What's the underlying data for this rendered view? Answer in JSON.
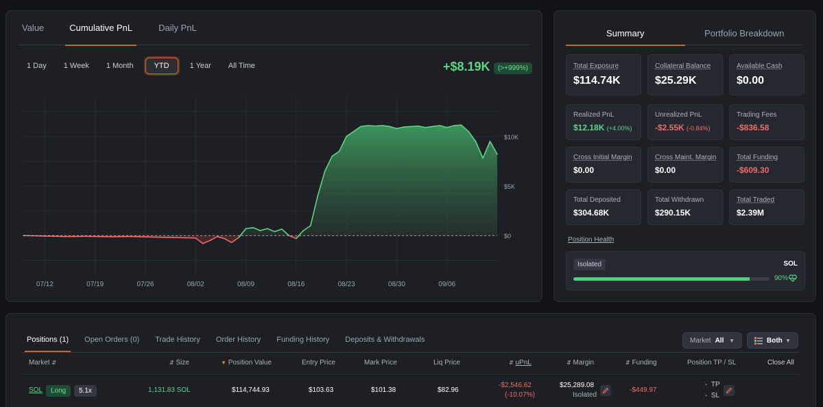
{
  "chart_panel": {
    "tabs": [
      "Value",
      "Cumulative PnL",
      "Daily PnL"
    ],
    "active_tab": "Cumulative PnL",
    "ranges": [
      "1 Day",
      "1 Week",
      "1 Month",
      "YTD",
      "1 Year",
      "All Time"
    ],
    "active_range": "YTD",
    "pnl_value": "+$8.19K",
    "pnl_badge": "(>+999%)"
  },
  "chart_data": {
    "type": "area",
    "x_ticks": [
      "07/12",
      "07/19",
      "07/26",
      "08/02",
      "08/09",
      "08/16",
      "08/23",
      "08/30",
      "09/06"
    ],
    "y_ticks": [
      "$10K",
      "$5K",
      "$0"
    ],
    "ylim": [
      -4000,
      14000
    ],
    "x_range": [
      "07/09",
      "09/13"
    ],
    "grid": true,
    "colors": {
      "positive": "#5ed487",
      "negative": "#f06b6b"
    },
    "x": [
      "07/09",
      "07/12",
      "07/15",
      "07/18",
      "07/21",
      "07/24",
      "07/27",
      "07/30",
      "08/02",
      "08/03",
      "08/04",
      "08/05",
      "08/06",
      "08/07",
      "08/08",
      "08/09",
      "08/10",
      "08/11",
      "08/12",
      "08/13",
      "08/14",
      "08/15",
      "08/16",
      "08/17",
      "08/18",
      "08/19",
      "08/20",
      "08/21",
      "08/22",
      "08/23",
      "08/24",
      "08/25",
      "08/26",
      "08/27",
      "08/28",
      "08/29",
      "08/30",
      "08/31",
      "09/01",
      "09/02",
      "09/03",
      "09/04",
      "09/05",
      "09/06",
      "09/07",
      "09/08",
      "09/09",
      "09/10",
      "09/11",
      "09/12",
      "09/13"
    ],
    "values": [
      0,
      -50,
      -100,
      -80,
      -120,
      -90,
      -150,
      -200,
      -250,
      -800,
      -500,
      -100,
      -300,
      -700,
      -200,
      700,
      800,
      500,
      700,
      400,
      650,
      0,
      -300,
      500,
      1000,
      4000,
      6500,
      8000,
      8500,
      10000,
      10500,
      11000,
      11100,
      11050,
      11100,
      11000,
      10800,
      10950,
      11000,
      11050,
      10900,
      11000,
      11100,
      10900,
      11100,
      11150,
      10500,
      9500,
      7800,
      9500,
      8200
    ]
  },
  "summary": {
    "tabs": [
      "Summary",
      "Portfolio Breakdown"
    ],
    "active_tab": "Summary",
    "stats": [
      {
        "label": "Total Exposure",
        "value": "$114.74K",
        "sub": "",
        "tone": "",
        "ul": true
      },
      {
        "label": "Collateral Balance",
        "value": "$25.29K",
        "sub": "",
        "tone": "",
        "ul": true
      },
      {
        "label": "Available Cash",
        "value": "$0.00",
        "sub": "",
        "tone": "",
        "ul": true
      },
      {
        "label": "Realized PnL",
        "value": "$12.18K",
        "sub": "(+4.00%)",
        "tone": "pos",
        "ul": false
      },
      {
        "label": "Unrealized PnL",
        "value": "-$2.55K",
        "sub": "(-0.84%)",
        "tone": "neg",
        "ul": false
      },
      {
        "label": "Trading Fees",
        "value": "-$836.58",
        "sub": "",
        "tone": "neg",
        "ul": false
      },
      {
        "label": "Cross Initial Margin",
        "value": "$0.00",
        "sub": "",
        "tone": "",
        "ul": true
      },
      {
        "label": "Cross Maint. Margin",
        "value": "$0.00",
        "sub": "",
        "tone": "",
        "ul": true
      },
      {
        "label": "Total Funding",
        "value": "-$609.30",
        "sub": "",
        "tone": "neg",
        "ul": true
      },
      {
        "label": "Total Deposited",
        "value": "$304.68K",
        "sub": "",
        "tone": "",
        "ul": false
      },
      {
        "label": "Total Withdrawn",
        "value": "$290.15K",
        "sub": "",
        "tone": "",
        "ul": false
      },
      {
        "label": "Total Traded",
        "value": "$2.39M",
        "sub": "",
        "tone": "",
        "ul": true
      }
    ],
    "health": {
      "label": "Position Health",
      "badge": "Isolated",
      "asset": "SOL",
      "percent_text": "90%",
      "level": 0.9
    }
  },
  "positions": {
    "tabs": [
      "Positions (1)",
      "Open Orders (0)",
      "Trade History",
      "Order History",
      "Funding History",
      "Deposits & Withdrawals"
    ],
    "active_tab": "Positions (1)",
    "market_filter": {
      "label": "Market",
      "value": "All"
    },
    "side_filter": {
      "value": "Both"
    },
    "headers": {
      "market": "Market",
      "size": "Size",
      "position_value": "Position Value",
      "entry": "Entry Price",
      "mark": "Mark Price",
      "liq": "Liq Price",
      "upnl": "uPnL",
      "margin": "Margin",
      "funding": "Funding",
      "tpsl": "Position TP / SL",
      "close_all": "Close All"
    },
    "row": {
      "market": "SOL",
      "side": "Long",
      "leverage": "5.1x",
      "size": "1,131.83 SOL",
      "position_value": "$114,744.93",
      "entry": "$103.63",
      "mark": "$101.38",
      "liq": "$82.96",
      "upnl": "-$2,546.62",
      "upnl_pct": "(-10.07%)",
      "margin": "$25,289.08",
      "margin_mode": "Isolated",
      "funding": "-$449.97",
      "tp": "TP",
      "sl": "SL"
    }
  }
}
